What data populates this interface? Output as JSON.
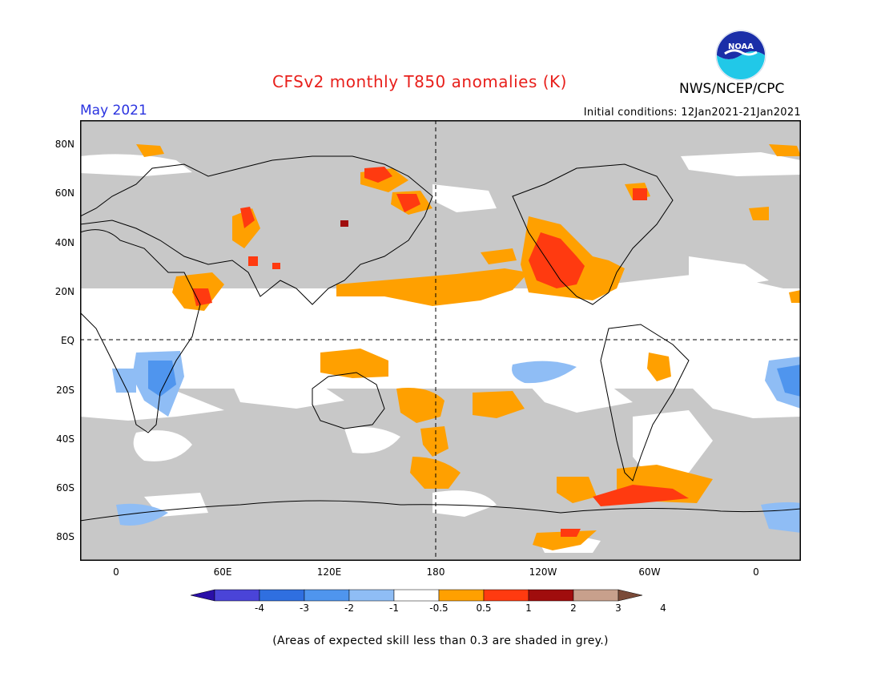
{
  "header": {
    "title": "CFSv2 monthly T850 anomalies (K)",
    "period": "May 2021",
    "initial_conditions": "Initial conditions: 12Jan2021-21Jan2021",
    "agency": "NWS/NCEP/CPC",
    "logo_text": "NOAA"
  },
  "axes": {
    "lat_labels": [
      "80N",
      "60N",
      "40N",
      "20N",
      "EQ",
      "20S",
      "40S",
      "60S",
      "80S"
    ],
    "lon_labels": [
      "0",
      "60E",
      "120E",
      "180",
      "120W",
      "60W",
      "0"
    ]
  },
  "colorbar": {
    "labels": [
      "-4",
      "-3",
      "-2",
      "-1",
      "-0.5",
      "0.5",
      "1",
      "2",
      "3",
      "4"
    ],
    "colors": [
      "#2a0fa8",
      "#4a44d8",
      "#2f6fe0",
      "#4f95ee",
      "#8fbdf5",
      "#ffffff",
      "#ffa000",
      "#ff3a10",
      "#a00d0d",
      "#c8a08c",
      "#7a4a38"
    ]
  },
  "colors": {
    "grey_low_skill": "#c8c8c8",
    "warm_1": "#ffa000",
    "warm_2": "#ff3a10",
    "warm_3": "#a00d0d",
    "cool_1": "#8fbdf5",
    "cool_2": "#4f95ee",
    "cool_3": "#2f6fe0"
  },
  "footnote": "(Areas of expected skill less than 0.3 are shaded in grey.)"
}
